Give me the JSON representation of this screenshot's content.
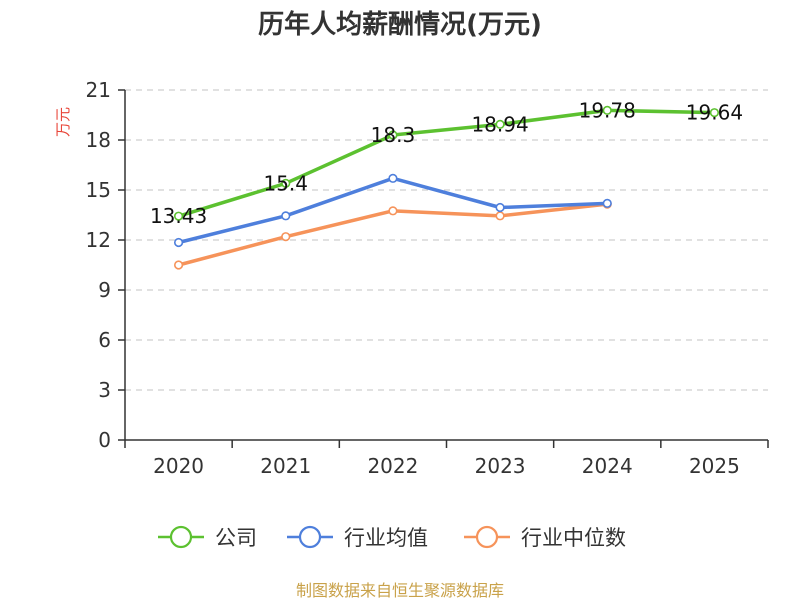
{
  "chart_data": {
    "type": "line",
    "title": "历年人均薪酬情况(万元)",
    "ylabel": "万元",
    "xlabel": "",
    "categories": [
      "2020",
      "2021",
      "2022",
      "2023",
      "2024",
      "2025"
    ],
    "ylim": [
      0,
      21
    ],
    "yticks": [
      0,
      3,
      6,
      9,
      12,
      15,
      18,
      21
    ],
    "grid": true,
    "legend_position": "bottom",
    "series": [
      {
        "name": "公司",
        "color": "#5cc130",
        "values": [
          13.43,
          15.4,
          18.3,
          18.94,
          19.78,
          19.64
        ],
        "labels": [
          "13.43",
          "15.4",
          "18.3",
          "18.94",
          "19.78",
          "19.64"
        ]
      },
      {
        "name": "行业均值",
        "color": "#4e7fdc",
        "values": [
          11.85,
          13.45,
          15.7,
          13.95,
          14.2,
          null
        ]
      },
      {
        "name": "行业中位数",
        "color": "#f6935a",
        "values": [
          10.5,
          12.2,
          13.75,
          13.45,
          14.15,
          null
        ]
      }
    ],
    "source": "制图数据来自恒生聚源数据库"
  }
}
